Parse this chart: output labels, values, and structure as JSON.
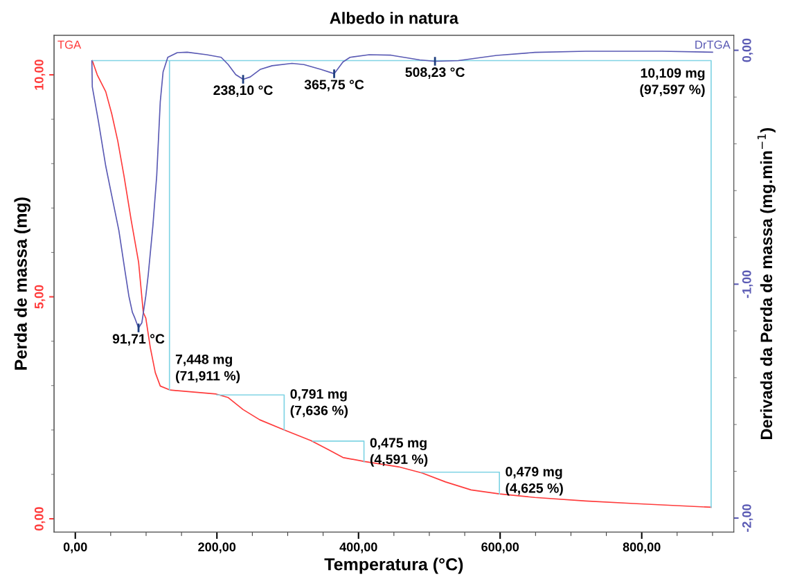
{
  "chart_data": {
    "type": "line",
    "title": "Albedo in natura",
    "xlabel": "Temperatura (°C)",
    "ylabel": "Perda de massa (mg)",
    "y2label": "Derivada da Perda de massa (mg.min$^{−1}$)",
    "xlim": [
      -30,
      930
    ],
    "ylim": [
      -0.3,
      10.89
    ],
    "y2lim": [
      -2.06,
      0.064
    ],
    "xticks": [
      {
        "value": 0,
        "label": "0,00"
      },
      {
        "value": 50,
        "label": null
      },
      {
        "value": 100,
        "label": null
      },
      {
        "value": 150,
        "label": null
      },
      {
        "value": 200,
        "label": "200,00"
      },
      {
        "value": 250,
        "label": null
      },
      {
        "value": 300,
        "label": null
      },
      {
        "value": 350,
        "label": null
      },
      {
        "value": 400,
        "label": "400,00"
      },
      {
        "value": 450,
        "label": null
      },
      {
        "value": 500,
        "label": null
      },
      {
        "value": 550,
        "label": null
      },
      {
        "value": 600,
        "label": "600,00"
      },
      {
        "value": 650,
        "label": null
      },
      {
        "value": 700,
        "label": null
      },
      {
        "value": 750,
        "label": null
      },
      {
        "value": 800,
        "label": "800,00"
      },
      {
        "value": 850,
        "label": null
      },
      {
        "value": 900,
        "label": null
      }
    ],
    "yticks": [
      {
        "value": 0,
        "label": "0,00"
      },
      {
        "value": 1,
        "label": null
      },
      {
        "value": 2,
        "label": null
      },
      {
        "value": 3,
        "label": null
      },
      {
        "value": 4,
        "label": null
      },
      {
        "value": 5,
        "label": "5,00"
      },
      {
        "value": 6,
        "label": null
      },
      {
        "value": 7,
        "label": null
      },
      {
        "value": 8,
        "label": null
      },
      {
        "value": 9,
        "label": null
      },
      {
        "value": 10,
        "label": "10,00"
      }
    ],
    "y2ticks": [
      {
        "value": -2,
        "label": "-2,00"
      },
      {
        "value": -1.8,
        "label": null
      },
      {
        "value": -1.6,
        "label": null
      },
      {
        "value": -1.4,
        "label": null
      },
      {
        "value": -1.2,
        "label": null
      },
      {
        "value": -1,
        "label": "-1,00"
      },
      {
        "value": -0.8,
        "label": null
      },
      {
        "value": -0.6,
        "label": null
      },
      {
        "value": -0.4,
        "label": null
      },
      {
        "value": -0.2,
        "label": null
      },
      {
        "value": 0,
        "label": "0,00"
      }
    ],
    "grid": false,
    "legend": false,
    "marker": "none",
    "line_style": "solid",
    "series": [
      {
        "name": "TGA",
        "color": "#ff3b3b",
        "x": [
          24,
          31,
          43,
          51.5,
          60,
          68.7,
          79,
          89.4,
          96,
          99.6,
          106,
          113,
          120,
          134,
          199,
          216,
          237,
          260.5,
          295,
          333,
          357,
          378,
          408.6,
          456.7,
          490,
          523,
          559,
          599,
          649,
          721,
          793,
          898
        ],
        "values": [
          10.32,
          10.0,
          9.62,
          9.12,
          8.51,
          7.73,
          6.72,
          5.78,
          4.65,
          4.52,
          3.85,
          3.29,
          2.99,
          2.9,
          2.81,
          2.73,
          2.46,
          2.23,
          2.0,
          1.76,
          1.56,
          1.38,
          1.29,
          1.17,
          1.03,
          0.83,
          0.65,
          0.56,
          0.48,
          0.4,
          0.34,
          0.26
        ]
      },
      {
        "color": "#80d4e4",
        "x": [
          24,
          898,
          898,
          null,
          133,
          133,
          null,
          200,
          295,
          295,
          null,
          335.6,
          407.7,
          407.7,
          null,
          488.5,
          599,
          599
        ],
        "values": [
          10.32,
          10.32,
          0.26,
          null,
          10.32,
          2.9,
          null,
          2.79,
          2.79,
          2.0,
          null,
          1.75,
          1.75,
          1.28,
          null,
          1.05,
          1.05,
          0.56
        ]
      },
      {
        "name": "DrTGA",
        "color": "#5a5ab4",
        "axis": "y2",
        "x": [
          23.4,
          24,
          32.7,
          43,
          51.5,
          61.5,
          70,
          75.6,
          80.6,
          84,
          89.3,
          94,
          99.6,
          103,
          109.6,
          115,
          120,
          124,
          130.6,
          144,
          158,
          185.6,
          206,
          216,
          226.6,
          237,
          247,
          261,
          278,
          306,
          323,
          347,
          365.6,
          378,
          388,
          415,
          446,
          486.5,
          508,
          541,
          595,
          649,
          721,
          829,
          900
        ],
        "values": [
          -0.045,
          -0.156,
          -0.304,
          -0.495,
          -0.622,
          -0.77,
          -0.94,
          -1.05,
          -1.12,
          -1.144,
          -1.187,
          -1.165,
          -1.05,
          -0.96,
          -0.75,
          -0.536,
          -0.22,
          -0.092,
          -0.03,
          -0.01,
          -0.008,
          -0.019,
          -0.03,
          -0.061,
          -0.104,
          -0.124,
          -0.114,
          -0.082,
          -0.066,
          -0.056,
          -0.061,
          -0.082,
          -0.1,
          -0.05,
          -0.03,
          -0.019,
          -0.021,
          -0.041,
          -0.047,
          -0.044,
          -0.022,
          -0.009,
          -0.004,
          -0.004,
          -0.008
        ]
      }
    ],
    "annotations": [
      "91,71 °C",
      "238,10 °C",
      "365,75 °C",
      "508,23 °C",
      {
        "text": "10,109 mg\n(97,597 %)",
        "x": 898,
        "y": 9.83
      },
      {
        "text": "7,448 mg\n(71,911 %)",
        "x": 133,
        "y": 3.38
      },
      {
        "text": "0,791 mg\n(7,636 %)",
        "x": 295,
        "y": 2.6
      },
      {
        "text": "0,475 mg\n(4,591 %)",
        "x": 407.7,
        "y": 1.5
      },
      {
        "text": "0,479 mg\n(4,625 %)",
        "x": 599,
        "y": 0.85
      }
    ]
  }
}
